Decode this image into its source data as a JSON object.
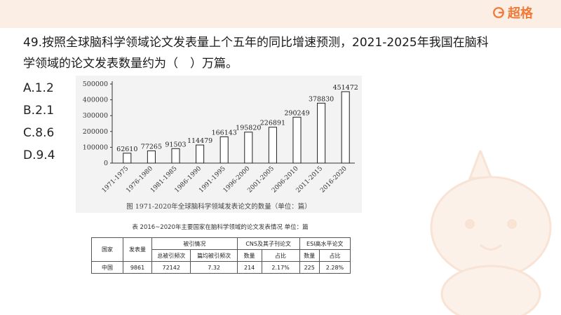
{
  "brand": {
    "name": "超格",
    "color": "#f07a3a"
  },
  "question": {
    "line1": "49.按照全球脑科学领域论文发表量上个五年的同比增速预测，2021-2025年我国在脑科",
    "line2": "学领域的论文发表数量约为（　）万篇。"
  },
  "options": [
    {
      "label": "A.1.2"
    },
    {
      "label": "B.2.1"
    },
    {
      "label": "C.8.6"
    },
    {
      "label": "D.9.4"
    }
  ],
  "chart_data": {
    "type": "bar",
    "title": "图 1971-2020年全球脑科学领域发表论文的数量（单位：篇）",
    "categories": [
      "1971-1975",
      "1976-1980",
      "1981-1985",
      "1986-1990",
      "1991-1995",
      "1996-2000",
      "2001-2005",
      "2006-2010",
      "2011-2015",
      "2016-2020"
    ],
    "values": [
      62610,
      77265,
      91503,
      114479,
      166143,
      195820,
      226891,
      290249,
      378830,
      451472
    ],
    "yticks": [
      "0",
      "100000",
      "200000",
      "300000",
      "400000",
      "500000"
    ],
    "ylim": [
      0,
      500000
    ],
    "grid": false,
    "bar_color": "#ffffff"
  },
  "table": {
    "title": "表  2016~2020年主要国家在脑科学领域的论文发表情况     单位：篇",
    "headers": {
      "country": "国家",
      "count": "发表量",
      "citations": "被引情况",
      "total_citations": "总被引频次",
      "avg_citations": "篇均被引频次",
      "cns": "CNS及其子刊论文",
      "esi": "ESI高水平论文",
      "cns_count": "数量",
      "cns_ratio": "占比",
      "esi_count": "数量",
      "esi_ratio": "占比"
    },
    "rows": [
      {
        "country": "中国",
        "count": "9861",
        "total_citations": "72142",
        "avg_citations": "7.32",
        "cns_count": "214",
        "cns_ratio": "2.17%",
        "esi_count": "225",
        "esi_ratio": "2.28%"
      }
    ]
  }
}
